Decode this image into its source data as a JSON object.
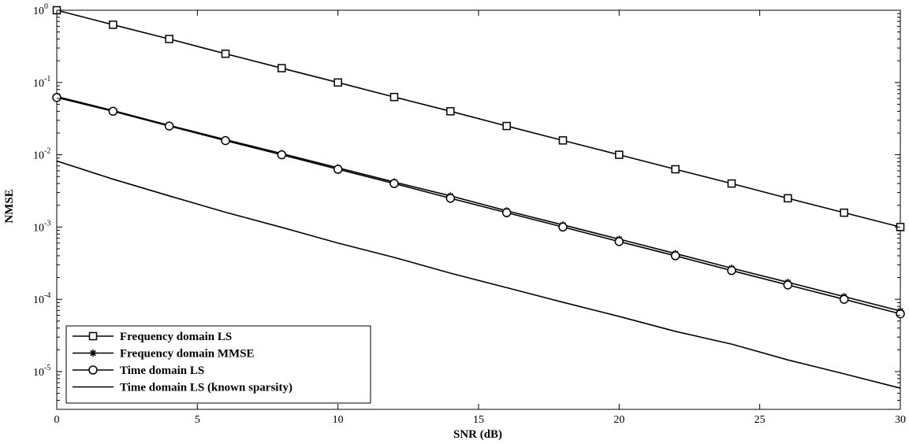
{
  "chart_data": {
    "type": "line",
    "xlabel": "SNR (dB)",
    "ylabel": "NMSE",
    "xlim": [
      0,
      30
    ],
    "ylim": [
      3e-06,
      1
    ],
    "yscale": "log",
    "xticks": [
      0,
      5,
      10,
      15,
      20,
      25,
      30
    ],
    "yticks": [
      {
        "value": 1,
        "label": "10",
        "exp": "0"
      },
      {
        "value": 0.1,
        "label": "10",
        "exp": "-1"
      },
      {
        "value": 0.01,
        "label": "10",
        "exp": "-2"
      },
      {
        "value": 0.001,
        "label": "10",
        "exp": "-3"
      },
      {
        "value": 0.0001,
        "label": "10",
        "exp": "-4"
      },
      {
        "value": 1e-05,
        "label": "10",
        "exp": "-5"
      }
    ],
    "grid": false,
    "legend_position": "bottom-left",
    "x": [
      0,
      2,
      4,
      6,
      8,
      10,
      12,
      14,
      16,
      18,
      20,
      22,
      24,
      26,
      28,
      30
    ],
    "series": [
      {
        "name": "Frequency domain LS",
        "marker": "square",
        "values": [
          1.0,
          0.63,
          0.4,
          0.25,
          0.158,
          0.1,
          0.063,
          0.04,
          0.025,
          0.0158,
          0.01,
          0.0063,
          0.004,
          0.0025,
          0.00158,
          0.001
        ]
      },
      {
        "name": "Frequency domain MMSE",
        "marker": "star",
        "values": [
          0.064,
          0.041,
          0.0255,
          0.0162,
          0.0104,
          0.0066,
          0.0042,
          0.0027,
          0.00168,
          0.00107,
          0.00068,
          0.00043,
          0.00027,
          0.000172,
          0.000109,
          6.9e-05
        ]
      },
      {
        "name": "Time domain LS",
        "marker": "circle",
        "values": [
          0.062,
          0.04,
          0.025,
          0.0157,
          0.01,
          0.0063,
          0.004,
          0.0025,
          0.00158,
          0.001,
          0.00063,
          0.0004,
          0.00025,
          0.000158,
          0.0001,
          6.3e-05
        ]
      },
      {
        "name": "Time domain LS (known sparsity)",
        "marker": "none",
        "values": [
          0.0082,
          0.0046,
          0.0027,
          0.0016,
          0.00099,
          0.0006,
          0.00038,
          0.00023,
          0.000145,
          9.1e-05,
          5.8e-05,
          3.6e-05,
          2.4e-05,
          1.45e-05,
          9.3e-06,
          5.9e-06
        ]
      }
    ]
  }
}
